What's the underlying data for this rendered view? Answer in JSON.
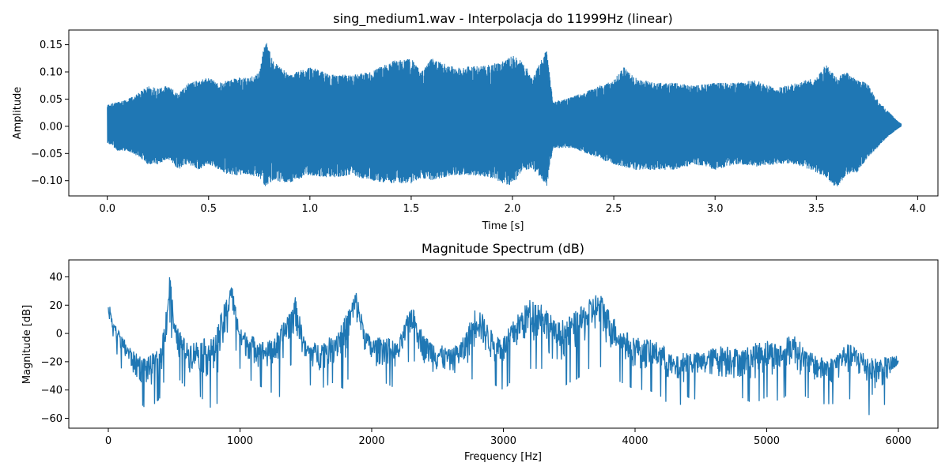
{
  "chart_data": [
    {
      "type": "line",
      "title": "sing_medium1.wav - Interpolacja do 11999Hz (linear)",
      "xlabel": "Time [s]",
      "ylabel": "Amplitude",
      "xlim": [
        -0.19,
        4.1
      ],
      "ylim": [
        -0.128,
        0.177
      ],
      "xticks": [
        0.0,
        0.5,
        1.0,
        1.5,
        2.0,
        2.5,
        3.0,
        3.5,
        4.0
      ],
      "xtick_labels": [
        "0.0",
        "0.5",
        "1.0",
        "1.5",
        "2.0",
        "2.5",
        "3.0",
        "3.5",
        "4.0"
      ],
      "yticks": [
        -0.1,
        -0.05,
        0.0,
        0.05,
        0.1,
        0.15
      ],
      "ytick_labels": [
        "−0.10",
        "−0.05",
        "0.00",
        "0.05",
        "0.10",
        "0.15"
      ],
      "grid": false,
      "series": [
        {
          "color": "#1f77b4",
          "envelope": {
            "t": [
              0.0,
              0.05,
              0.1,
              0.15,
              0.2,
              0.25,
              0.3,
              0.35,
              0.4,
              0.45,
              0.5,
              0.55,
              0.6,
              0.65,
              0.7,
              0.75,
              0.78,
              0.82,
              0.9,
              1.0,
              1.1,
              1.2,
              1.3,
              1.4,
              1.5,
              1.55,
              1.6,
              1.7,
              1.8,
              1.9,
              1.95,
              2.0,
              2.05,
              2.1,
              2.15,
              2.17,
              2.2,
              2.3,
              2.4,
              2.5,
              2.55,
              2.6,
              2.7,
              2.8,
              2.9,
              3.0,
              3.05,
              3.1,
              3.2,
              3.3,
              3.4,
              3.5,
              3.55,
              3.6,
              3.65,
              3.7,
              3.75,
              3.8,
              3.85,
              3.9,
              3.92
            ],
            "upper": [
              0.04,
              0.045,
              0.05,
              0.06,
              0.075,
              0.07,
              0.075,
              0.06,
              0.08,
              0.085,
              0.09,
              0.08,
              0.085,
              0.09,
              0.09,
              0.1,
              0.16,
              0.12,
              0.095,
              0.11,
              0.095,
              0.095,
              0.1,
              0.12,
              0.125,
              0.1,
              0.125,
              0.11,
              0.11,
              0.115,
              0.12,
              0.13,
              0.12,
              0.09,
              0.13,
              0.14,
              0.045,
              0.055,
              0.07,
              0.085,
              0.11,
              0.09,
              0.08,
              0.08,
              0.075,
              0.08,
              0.08,
              0.08,
              0.085,
              0.07,
              0.08,
              0.09,
              0.115,
              0.09,
              0.1,
              0.085,
              0.08,
              0.05,
              0.03,
              0.01,
              0.005
            ],
            "lower": [
              -0.03,
              -0.045,
              -0.045,
              -0.055,
              -0.07,
              -0.07,
              -0.06,
              -0.08,
              -0.07,
              -0.08,
              -0.07,
              -0.08,
              -0.09,
              -0.09,
              -0.09,
              -0.095,
              -0.11,
              -0.1,
              -0.105,
              -0.09,
              -0.095,
              -0.09,
              -0.1,
              -0.105,
              -0.105,
              -0.095,
              -0.1,
              -0.09,
              -0.09,
              -0.095,
              -0.105,
              -0.11,
              -0.08,
              -0.08,
              -0.1,
              -0.11,
              -0.04,
              -0.04,
              -0.055,
              -0.07,
              -0.075,
              -0.08,
              -0.08,
              -0.08,
              -0.07,
              -0.08,
              -0.075,
              -0.07,
              -0.075,
              -0.07,
              -0.07,
              -0.085,
              -0.095,
              -0.115,
              -0.09,
              -0.085,
              -0.06,
              -0.04,
              -0.02,
              -0.005,
              0.0
            ]
          }
        }
      ]
    },
    {
      "type": "line",
      "title": "Magnitude Spectrum (dB)",
      "xlabel": "Frequency [Hz]",
      "ylabel": "Magnitude [dB]",
      "xlim": [
        -300,
        6300
      ],
      "ylim": [
        -67,
        52
      ],
      "xticks": [
        0,
        1000,
        2000,
        3000,
        4000,
        5000,
        6000
      ],
      "xtick_labels": [
        "0",
        "1000",
        "2000",
        "3000",
        "4000",
        "5000",
        "6000"
      ],
      "yticks": [
        -60,
        -40,
        -20,
        0,
        20,
        40
      ],
      "ytick_labels": [
        "−60",
        "−40",
        "−20",
        "0",
        "20",
        "40"
      ],
      "grid": false,
      "series": [
        {
          "color": "#1f77b4",
          "envelope": {
            "f": [
              0,
              20,
              50,
              100,
              200,
              300,
              400,
              450,
              470,
              500,
              600,
              700,
              800,
              900,
              930,
              1000,
              1100,
              1200,
              1300,
              1350,
              1420,
              1500,
              1600,
              1700,
              1800,
              1880,
              1950,
              2000,
              2100,
              2200,
              2300,
              2400,
              2500,
              2600,
              2700,
              2800,
              2900,
              3000,
              3100,
              3200,
              3300,
              3400,
              3500,
              3600,
              3700,
              3750,
              3800,
              3900,
              4000,
              4100,
              4200,
              4300,
              4400,
              4500,
              4600,
              4700,
              4800,
              4900,
              5000,
              5100,
              5200,
              5300,
              5400,
              5500,
              5600,
              5700,
              5800,
              5900,
              6000
            ],
            "upper": [
              20,
              23,
              8,
              0,
              -12,
              -15,
              -8,
              30,
              47,
              10,
              -5,
              -2,
              0,
              30,
              40,
              5,
              0,
              -5,
              5,
              15,
              28,
              -5,
              -5,
              0,
              15,
              33,
              5,
              -2,
              0,
              -5,
              23,
              0,
              -5,
              -10,
              0,
              24,
              5,
              0,
              15,
              27,
              25,
              10,
              15,
              22,
              31,
              30,
              20,
              5,
              0,
              -2,
              -5,
              -15,
              -10,
              -12,
              -8,
              -5,
              -10,
              -5,
              -2,
              -5,
              3,
              -10,
              -15,
              -15,
              -5,
              -8,
              -15,
              -15,
              -14
            ],
            "lower": [
              -8,
              -20,
              -10,
              -25,
              -45,
              -55,
              -45,
              -20,
              10,
              -28,
              -40,
              -45,
              -55,
              -35,
              5,
              -25,
              -35,
              -40,
              -45,
              -30,
              -15,
              -35,
              -40,
              -35,
              -40,
              -10,
              -25,
              -40,
              -35,
              -40,
              -15,
              -35,
              -45,
              -40,
              -45,
              -25,
              -35,
              -40,
              -30,
              -25,
              -25,
              -40,
              -35,
              -30,
              -20,
              -25,
              -30,
              -35,
              -40,
              -40,
              -45,
              -55,
              -45,
              -48,
              -45,
              -50,
              -45,
              -50,
              -45,
              -48,
              -40,
              -45,
              -50,
              -50,
              -45,
              -50,
              -60,
              -50,
              -40
            ]
          }
        }
      ]
    }
  ]
}
